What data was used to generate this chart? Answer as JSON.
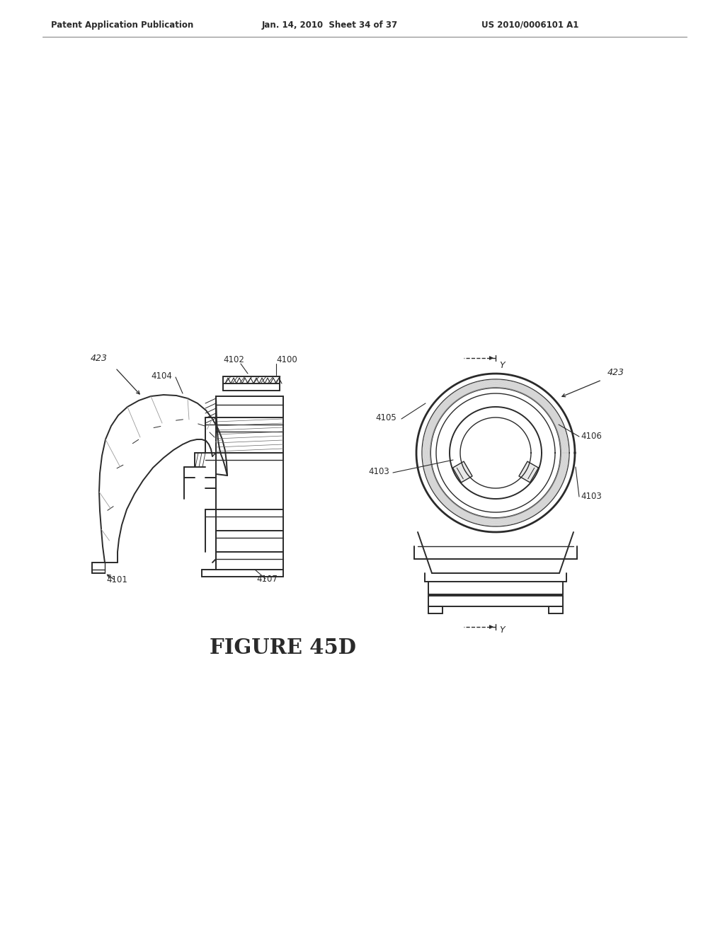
{
  "bg_color": "#ffffff",
  "line_color": "#2a2a2a",
  "header_left": "Patent Application Publication",
  "header_center": "Jan. 14, 2010  Sheet 34 of 37",
  "header_right": "US 2010/0006101 A1",
  "figure_label": "FIGURE 45D",
  "labels": {
    "423_left": "423",
    "4104": "4104",
    "4102": "4102",
    "4100": "4100",
    "4105": "4105",
    "4106": "4106",
    "4103_left": "4103",
    "4103_right": "4103",
    "4107": "4107",
    "4101": "4101",
    "423_right": "423",
    "Y_top": "Y",
    "Y_bottom": "Y"
  }
}
